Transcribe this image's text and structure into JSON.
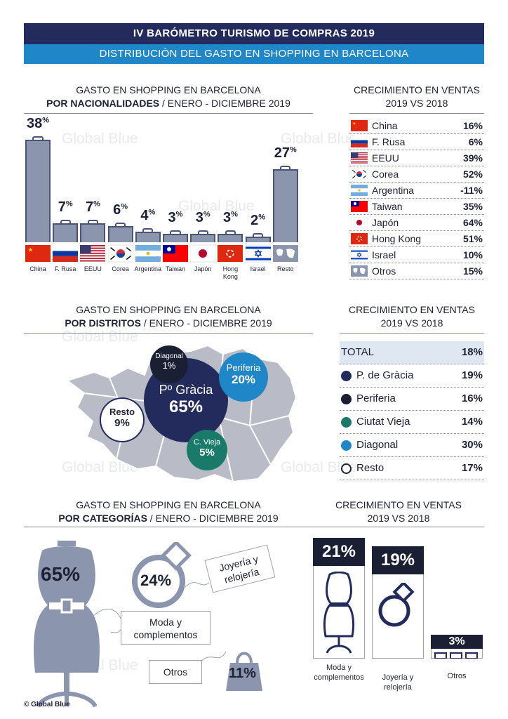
{
  "header": {
    "title": "IV BARÓMETRO TURISMO DE COMPRAS 2019",
    "subtitle": "DISTRIBUCIÓN DEL GASTO EN SHOPPING EN BARCELONA"
  },
  "watermark": "Global Blue",
  "copyright": "© Global Blue",
  "sections": {
    "nat": {
      "line1": "GASTO EN SHOPPING EN BARCELONA",
      "line2_bold": "POR NACIONALIDADES",
      "line2_rest": " / ENERO - DICIEMBRE 2019"
    },
    "growth": {
      "line1": "CRECIMIENTO EN VENTAS",
      "line2": "2019 VS 2018"
    },
    "dist": {
      "line1": "GASTO EN SHOPPING EN BARCELONA",
      "line2_bold": "POR DISTRITOS",
      "line2_rest": " / ENERO - DICIEMBRE 2019"
    },
    "cat": {
      "line1": "GASTO EN SHOPPING EN BARCELONA",
      "line2_bold": "POR CATEGORÍAS",
      "line2_rest": " / ENERO - DICIEMBRE 2019"
    }
  },
  "chart_data": [
    {
      "type": "bar",
      "categories": [
        "China",
        "F. Rusa",
        "EEUU",
        "Corea",
        "Argentina",
        "Taiwan",
        "Japón",
        "Hong Kong",
        "Israel",
        "Resto"
      ],
      "values": [
        38,
        7,
        7,
        6,
        4,
        3,
        3,
        3,
        2,
        27
      ],
      "unit": "%"
    },
    {
      "type": "table",
      "rows": [
        {
          "name": "China",
          "value": "16%"
        },
        {
          "name": "F. Rusa",
          "value": "6%"
        },
        {
          "name": "EEUU",
          "value": "39%"
        },
        {
          "name": "Corea",
          "value": "52%"
        },
        {
          "name": "Argentina",
          "value": "-11%"
        },
        {
          "name": "Taiwan",
          "value": "35%"
        },
        {
          "name": "Japón",
          "value": "64%"
        },
        {
          "name": "Hong Kong",
          "value": "51%"
        },
        {
          "name": "Israel",
          "value": "10%"
        },
        {
          "name": "Otros",
          "value": "15%"
        }
      ]
    },
    {
      "type": "bubble",
      "items": [
        {
          "name": "Pº Gràcia",
          "value": "65%",
          "color": "#232b5c"
        },
        {
          "name": "Periferia",
          "value": "20%",
          "color": "#1f86c8"
        },
        {
          "name": "Diagonal",
          "value": "1%",
          "color": "#1b1f33"
        },
        {
          "name": "C. Vieja",
          "value": "5%",
          "color": "#1a7a6a"
        },
        {
          "name": "Resto",
          "value": "9%",
          "color": "#ffffff"
        }
      ]
    },
    {
      "type": "table",
      "rows": [
        {
          "name": "TOTAL",
          "value": "18%"
        },
        {
          "name": "P. de Gràcia",
          "value": "19%",
          "color": "#232b5c"
        },
        {
          "name": "Periferia",
          "value": "16%",
          "color": "#1b1f33"
        },
        {
          "name": "Ciutat Vieja",
          "value": "14%",
          "color": "#1a7a6a"
        },
        {
          "name": "Diagonal",
          "value": "30%",
          "color": "#1f86c8"
        },
        {
          "name": "Resto",
          "value": "17%",
          "color": "#ffffff"
        }
      ]
    },
    {
      "type": "table",
      "rows": [
        {
          "name": "Moda y complementos",
          "share": "65%"
        },
        {
          "name": "Joyería y relojería",
          "share": "24%"
        },
        {
          "name": "Otros",
          "share": "11%"
        }
      ]
    },
    {
      "type": "bar",
      "categories": [
        "Moda y complementos",
        "Joyería y relojería",
        "Otros"
      ],
      "values": [
        21,
        19,
        3
      ],
      "unit": "%"
    }
  ],
  "labels": {
    "nat_pct": [
      "38%",
      "7%",
      "7%",
      "6%",
      "4%",
      "3%",
      "3%",
      "3%",
      "2%",
      "27%"
    ],
    "nat_names": [
      "China",
      "F. Rusa",
      "EEUU",
      "Corea",
      "Argentina",
      "Taiwan",
      "Japón",
      "Hong Kong",
      "Israel",
      "Resto"
    ],
    "growth_names": [
      "China",
      "F. Rusa",
      "EEUU",
      "Corea",
      "Argentina",
      "Taiwan",
      "Japón",
      "Hong Kong",
      "Israel",
      "Otros"
    ],
    "growth_vals": [
      "16%",
      "6%",
      "39%",
      "52%",
      "-11%",
      "35%",
      "64%",
      "51%",
      "10%",
      "15%"
    ],
    "dist_names": [
      "TOTAL",
      "P. de Gràcia",
      "Periferia",
      "Ciutat Vieja",
      "Diagonal",
      "Resto"
    ],
    "dist_vals": [
      "18%",
      "19%",
      "16%",
      "14%",
      "30%",
      "17%"
    ],
    "bub": {
      "gracia_n": "Pº Gràcia",
      "gracia_v": "65%",
      "peri_n": "Periferia",
      "peri_v": "20%",
      "diag_n": "Diagonal",
      "diag_v": "1%",
      "vieja_n": "C. Vieja",
      "vieja_v": "5%",
      "resto_n": "Resto",
      "resto_v": "9%"
    },
    "cat": {
      "moda_v": "65%",
      "moda_n": "Moda y complementos",
      "joya_v": "24%",
      "joya_n": "Joyería y relojería",
      "otros_v": "11%",
      "otros_n": "Otros"
    },
    "catg": {
      "moda_v": "21%",
      "joya_v": "19%",
      "otros_v": "3%",
      "moda_n": "Moda y complementos",
      "joya_n": "Joyería y relojería",
      "otros_n": "Otros"
    }
  },
  "colors": {
    "navy": "#232b5c",
    "blue": "#1f86c8",
    "teal": "#1a7a6a",
    "dark": "#1b1f33",
    "bar": "#8b96ae"
  },
  "icons": [
    "china-flag",
    "russia-flag",
    "usa-flag",
    "korea-flag",
    "argentina-flag",
    "taiwan-flag",
    "japan-flag",
    "hong-kong-flag",
    "israel-flag",
    "world-map-icon",
    "shopping-bag-icon",
    "dress-form-icon",
    "ring-icon"
  ]
}
